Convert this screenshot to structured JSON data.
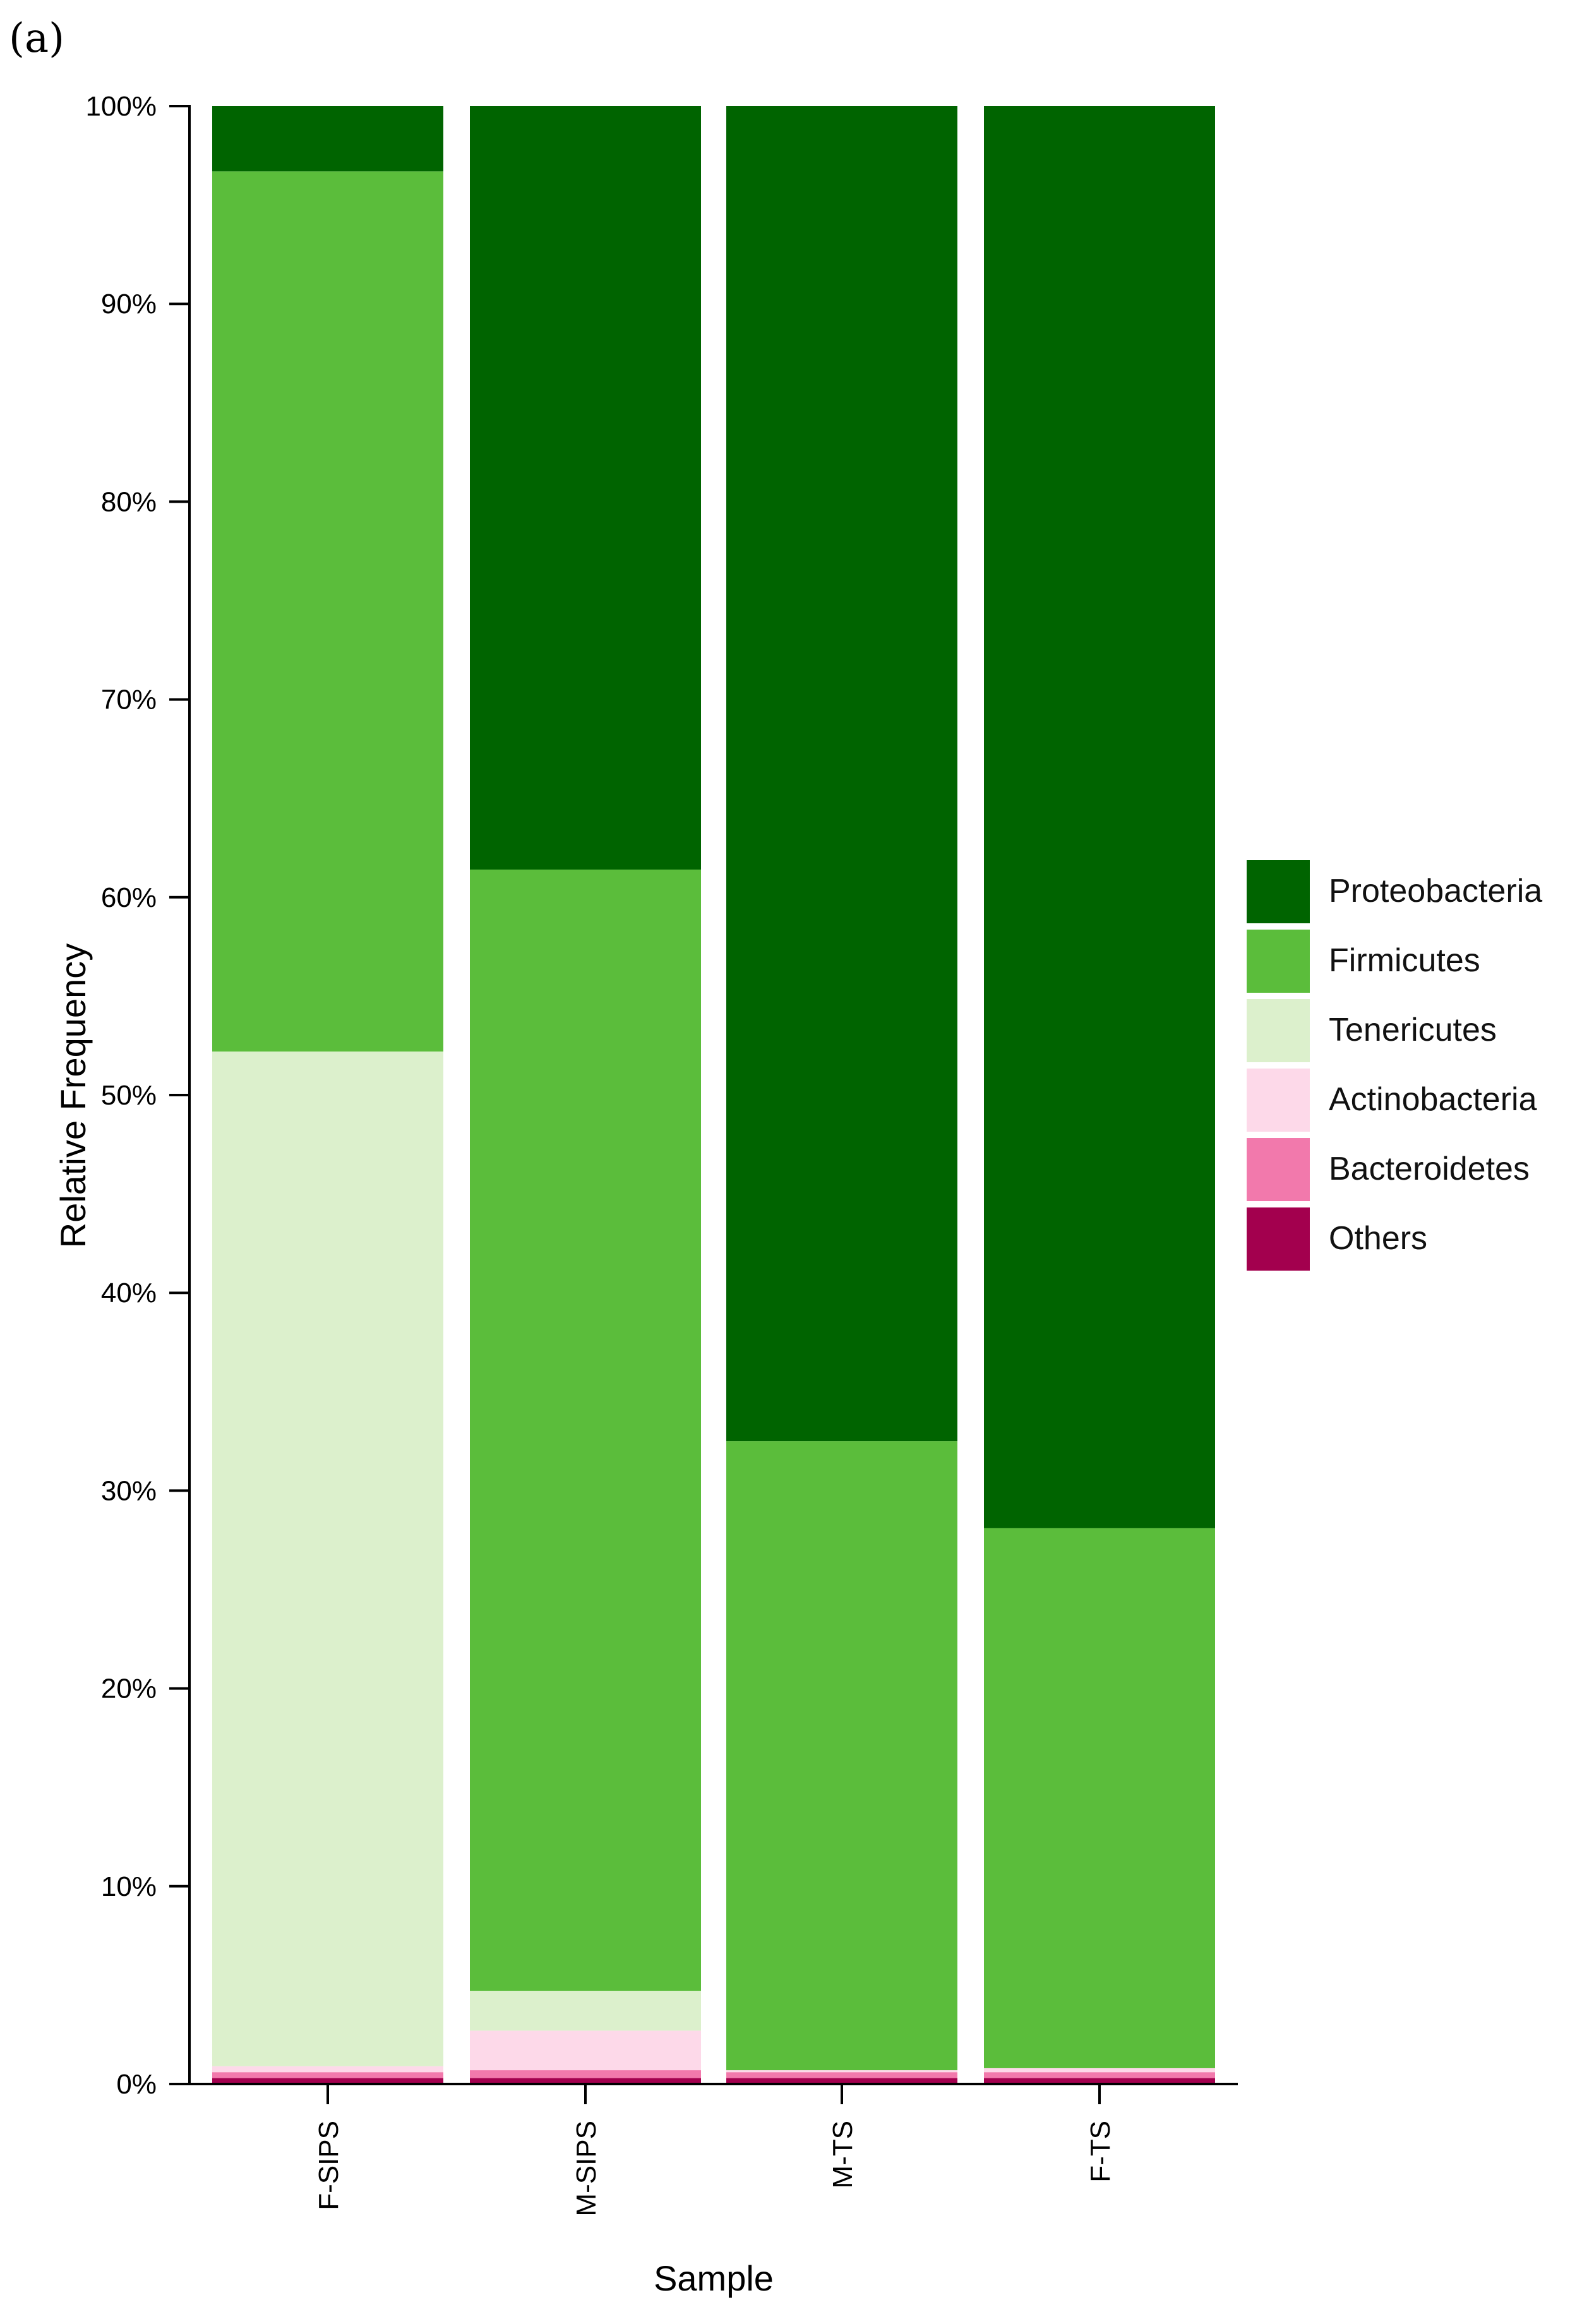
{
  "chart_data": {
    "type": "bar",
    "stacked": true,
    "panel_label": "(a)",
    "title": "",
    "xlabel": "Sample",
    "ylabel": "Relative Frequency",
    "ylim": [
      0,
      100
    ],
    "y_ticks": [
      "0%",
      "10%",
      "20%",
      "30%",
      "40%",
      "50%",
      "60%",
      "70%",
      "80%",
      "90%",
      "100%"
    ],
    "categories": [
      "F-SIPS",
      "M-SIPS",
      "M-TS",
      "F-TS"
    ],
    "series": [
      {
        "name": "Others",
        "color": "#a3004e",
        "values": [
          0.3,
          0.3,
          0.3,
          0.3
        ]
      },
      {
        "name": "Bacteroidetes",
        "color": "#f279ac",
        "values": [
          0.3,
          0.4,
          0.3,
          0.3
        ]
      },
      {
        "name": "Actinobacteria",
        "color": "#fdd9e9",
        "values": [
          0.3,
          2.0,
          0.1,
          0.2
        ]
      },
      {
        "name": "Tenericutes",
        "color": "#dcf0cc",
        "values": [
          51.3,
          2.0,
          0.0,
          0.0
        ]
      },
      {
        "name": "Firmicutes",
        "color": "#5bbd3b",
        "values": [
          44.5,
          56.7,
          31.8,
          27.3
        ]
      },
      {
        "name": "Proteobacteria",
        "color": "#006400",
        "values": [
          3.3,
          38.6,
          67.5,
          71.9
        ]
      }
    ],
    "legend": {
      "position": "right",
      "order": [
        "Proteobacteria",
        "Firmicutes",
        "Tenericutes",
        "Actinobacteria",
        "Bacteroidetes",
        "Others"
      ]
    }
  }
}
